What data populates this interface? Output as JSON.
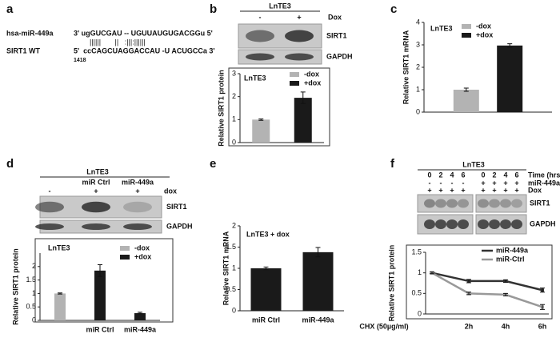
{
  "panels": [
    "a",
    "b",
    "c",
    "d",
    "e",
    "f"
  ],
  "sequence": {
    "mirna_name": "hsa-miR-449a",
    "mirna_seq": "3' ugGUCGAU -- UGUUAUGUGACGGu 5'",
    "pairing": "||||||       ||   :|||:||||||",
    "target_name": "SIRT1 WT",
    "target_seq": "5'  ccCAGCUAGGACCAU -U ACUGCCa 3'",
    "position": "1418"
  },
  "blots": [
    {
      "title": "LnTE3",
      "rows": [
        {
          "label": "Dox",
          "cells": [
            "-",
            "+"
          ]
        }
      ],
      "bands": [
        "SIRT1",
        "GAPDH"
      ]
    },
    {
      "title": "LnTE3",
      "rows": [
        {
          "cells": [
            null,
            "miR Ctrl",
            "miR-449a"
          ]
        },
        {
          "label": "dox",
          "cells": [
            "-",
            "+",
            "+"
          ]
        }
      ],
      "bands": [
        "SIRT1",
        "GAPDH"
      ]
    },
    {
      "title": "LnTE3",
      "rows": [
        {
          "label": "Time (hrs)",
          "cells": [
            "0",
            "2",
            "4",
            "6",
            "0",
            "2",
            "4",
            "6"
          ]
        },
        {
          "label": "miR-449a",
          "cells": [
            "-",
            "-",
            "-",
            "-",
            "+",
            "+",
            "+",
            "+"
          ]
        },
        {
          "label": "Dox",
          "cells": [
            "+",
            "+",
            "+",
            "+",
            "+",
            "+",
            "+",
            "+"
          ]
        }
      ],
      "bands": [
        "SIRT1",
        "GAPDH"
      ]
    }
  ],
  "chart_data": [
    {
      "type": "bar",
      "annotation": "LnTE3",
      "ylabel": "Relative SIRT1 protein",
      "categories": [
        null
      ],
      "series": [
        {
          "name": "-dox",
          "color": "#b3b3b3",
          "values": [
            1.0
          ],
          "errors": [
            0.03
          ]
        },
        {
          "name": "+dox",
          "color": "#1a1a1a",
          "values": [
            1.95
          ],
          "errors": [
            0.25
          ]
        }
      ],
      "ylim": [
        0,
        3
      ],
      "yticks": [
        0,
        1,
        2,
        3
      ],
      "legend": "upper right"
    },
    {
      "type": "bar",
      "annotation": "LnTE3",
      "ylabel": "Relative SIRT1 mRNA",
      "categories": [
        null
      ],
      "series": [
        {
          "name": "-dox",
          "color": "#b3b3b3",
          "values": [
            1.0
          ],
          "errors": [
            0.07
          ]
        },
        {
          "name": "+dox",
          "color": "#1a1a1a",
          "values": [
            2.97
          ],
          "errors": [
            0.08
          ]
        }
      ],
      "ylim": [
        0,
        4
      ],
      "yticks": [
        0,
        1,
        2,
        3,
        4
      ],
      "legend": "upper right"
    },
    {
      "type": "bar",
      "annotation": "LnTE3",
      "ylabel": "Relative SIRT1 protein",
      "categories": [
        null,
        "miR Ctrl",
        "miR-449a"
      ],
      "series": [
        {
          "name": "-dox",
          "color": "#b3b3b3",
          "values": [
            1.0,
            null,
            null
          ],
          "errors": [
            0.02,
            null,
            null
          ]
        },
        {
          "name": "+dox",
          "color": "#1a1a1a",
          "values": [
            null,
            1.85,
            0.27
          ],
          "errors": [
            null,
            0.22,
            0.03
          ]
        }
      ],
      "ylim": [
        0,
        2.5
      ],
      "yticks": [
        0,
        0.5,
        1,
        1.5,
        2
      ],
      "legend": "upper right"
    },
    {
      "type": "bar",
      "annotation": "LnTE3 + dox",
      "ylabel": "Relative SIRT1 mRNA",
      "categories": [
        "miR Ctrl",
        "miR-449a"
      ],
      "series": [
        {
          "color": "#1a1a1a",
          "values": [
            1.0,
            1.38
          ],
          "errors": [
            0.03,
            0.11
          ]
        }
      ],
      "ylim": [
        0,
        2
      ],
      "yticks": [
        0,
        0.5,
        1,
        1.5,
        2
      ]
    },
    {
      "type": "line",
      "ylabel": "Relative SIRT1 protein",
      "xlabel": "CHX (50µg/ml)",
      "categories": [
        null,
        "2h",
        "4h",
        "6h"
      ],
      "series": [
        {
          "name": "miR-449a",
          "color": "#333333",
          "values": [
            1.0,
            0.8,
            0.8,
            0.58
          ],
          "errors": [
            0.02,
            0.04,
            0.03,
            0.05
          ]
        },
        {
          "name": "miR-Ctrl",
          "color": "#999999",
          "values": [
            1.0,
            0.5,
            0.47,
            0.17
          ],
          "errors": [
            0.02,
            0.03,
            0.03,
            0.06
          ]
        }
      ],
      "ylim": [
        0,
        1.5
      ],
      "yticks": [
        0,
        0.5,
        1,
        1.5
      ],
      "legend": "upper right"
    }
  ]
}
